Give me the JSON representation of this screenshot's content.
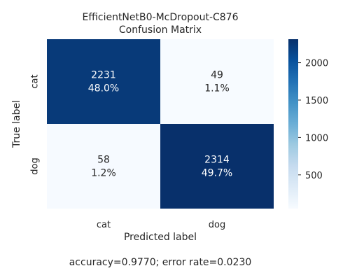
{
  "chart_data": {
    "type": "heatmap",
    "title_line1": "EfficientNetB0-McDropout-C876",
    "title_line2": "Confusion Matrix",
    "xlabel": "Predicted label",
    "ylabel": "True label",
    "x_categories": [
      "cat",
      "dog"
    ],
    "y_categories": [
      "cat",
      "dog"
    ],
    "values": [
      [
        2231,
        49
      ],
      [
        58,
        2314
      ]
    ],
    "percent_labels": [
      [
        "48.0%",
        "1.1%"
      ],
      [
        "1.2%",
        "49.7%"
      ]
    ],
    "colorbar": {
      "ticks": [
        500,
        1000,
        1500,
        2000
      ],
      "vmin": 49,
      "vmax": 2314
    },
    "colormap": "Blues",
    "footer": "accuracy=0.9770; error rate=0.0230"
  }
}
